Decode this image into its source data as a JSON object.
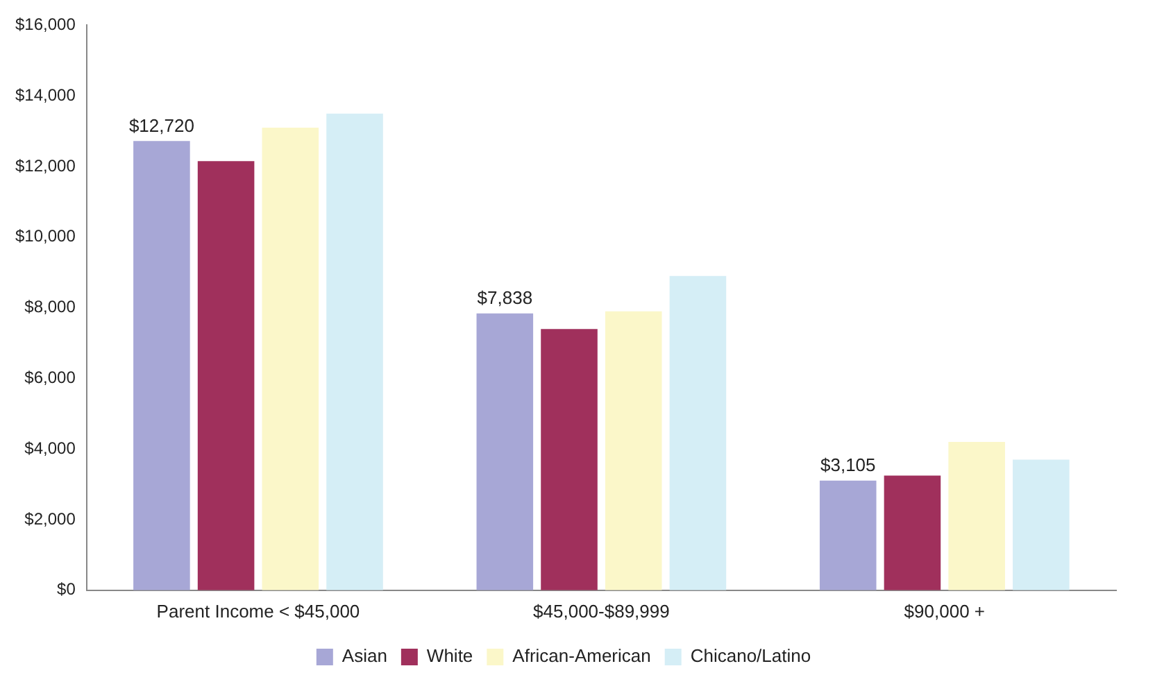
{
  "chart_data": {
    "type": "bar",
    "categories": [
      "Parent Income < $45,000",
      "$45,000-$89,999",
      "$90,000 +"
    ],
    "series": [
      {
        "name": "Asian",
        "color": "#a7a7d6",
        "values": [
          12720,
          7838,
          3105
        ],
        "value_labels": [
          "$12,720",
          "$7,838",
          "$3,105"
        ]
      },
      {
        "name": "White",
        "color": "#a0305c",
        "values": [
          12150,
          7400,
          3250
        ]
      },
      {
        "name": "African-American",
        "color": "#fbf7c9",
        "values": [
          13100,
          7900,
          4200
        ]
      },
      {
        "name": "Chicano/Latino",
        "color": "#d5eef6",
        "values": [
          13500,
          8900,
          3700
        ]
      }
    ],
    "ylim": [
      0,
      16000
    ],
    "yticks": [
      {
        "value": 0,
        "label": "$0"
      },
      {
        "value": 2000,
        "label": "$2,000"
      },
      {
        "value": 4000,
        "label": "$4,000"
      },
      {
        "value": 6000,
        "label": "$6,000"
      },
      {
        "value": 8000,
        "label": "$8,000"
      },
      {
        "value": 10000,
        "label": "$10,000"
      },
      {
        "value": 12000,
        "label": "$12,000"
      },
      {
        "value": 14000,
        "label": "$14,000"
      },
      {
        "value": 16000,
        "label": "$16,000"
      }
    ],
    "grid": false,
    "legend": "bottom"
  }
}
